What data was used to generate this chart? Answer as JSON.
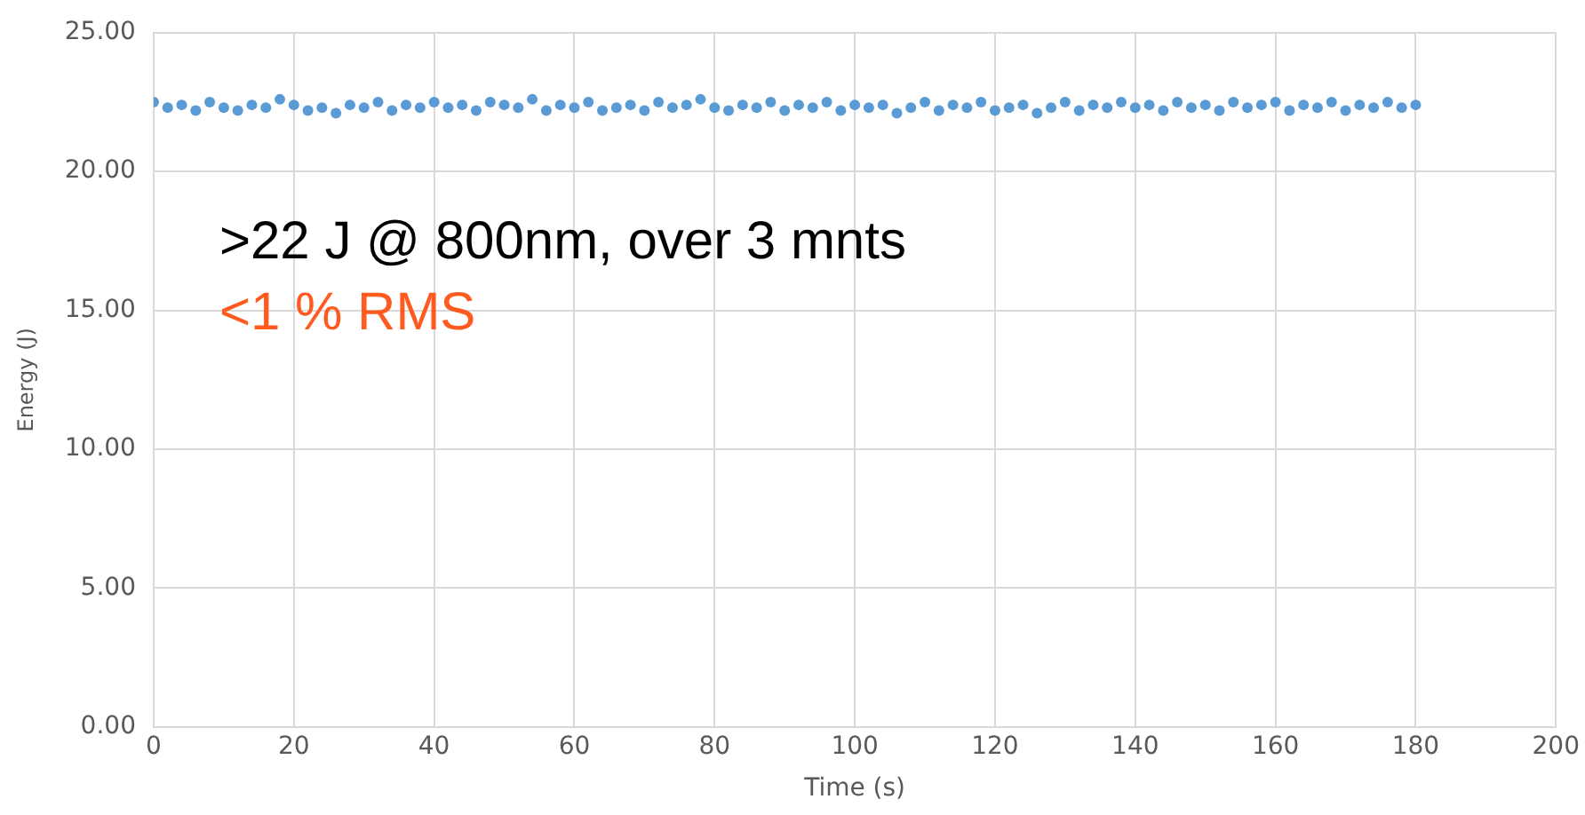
{
  "chart_data": {
    "type": "scatter",
    "xlabel": "Time (s)",
    "ylabel": "Energy (J)",
    "annotations": [
      ">22 J @ 800nm, over 3 mnts",
      "<1 % RMS"
    ],
    "x": [
      0,
      2,
      4,
      6,
      8,
      10,
      12,
      14,
      16,
      18,
      20,
      22,
      24,
      26,
      28,
      30,
      32,
      34,
      36,
      38,
      40,
      42,
      44,
      46,
      48,
      50,
      52,
      54,
      56,
      58,
      60,
      62,
      64,
      66,
      68,
      70,
      72,
      74,
      76,
      78,
      80,
      82,
      84,
      86,
      88,
      90,
      92,
      94,
      96,
      98,
      100,
      102,
      104,
      106,
      108,
      110,
      112,
      114,
      116,
      118,
      120,
      122,
      124,
      126,
      128,
      130,
      132,
      134,
      136,
      138,
      140,
      142,
      144,
      146,
      148,
      150,
      152,
      154,
      156,
      158,
      160,
      162,
      164,
      166,
      168,
      170,
      172,
      174,
      176,
      178,
      180
    ],
    "series": [
      {
        "color": "#5b9bd5",
        "values": [
          22.5,
          22.3,
          22.4,
          22.2,
          22.5,
          22.3,
          22.2,
          22.4,
          22.3,
          22.6,
          22.4,
          22.2,
          22.3,
          22.1,
          22.4,
          22.3,
          22.5,
          22.2,
          22.4,
          22.3,
          22.5,
          22.3,
          22.4,
          22.2,
          22.5,
          22.4,
          22.3,
          22.6,
          22.2,
          22.4,
          22.3,
          22.5,
          22.2,
          22.3,
          22.4,
          22.2,
          22.5,
          22.3,
          22.4,
          22.6,
          22.3,
          22.2,
          22.4,
          22.3,
          22.5,
          22.2,
          22.4,
          22.3,
          22.5,
          22.2,
          22.4,
          22.3,
          22.4,
          22.1,
          22.3,
          22.5,
          22.2,
          22.4,
          22.3,
          22.5,
          22.2,
          22.3,
          22.4,
          22.1,
          22.3,
          22.5,
          22.2,
          22.4,
          22.3,
          22.5,
          22.3,
          22.4,
          22.2,
          22.5,
          22.3,
          22.4,
          22.2,
          22.5,
          22.3,
          22.4,
          22.5,
          22.2,
          22.4,
          22.3,
          22.5,
          22.2,
          22.4,
          22.3,
          22.5,
          22.3,
          22.4
        ]
      }
    ],
    "xlim": [
      0,
      200
    ],
    "xticks": [
      0,
      20,
      40,
      60,
      80,
      100,
      120,
      140,
      160,
      180,
      200
    ],
    "ylim": [
      0,
      25
    ],
    "yticks": [
      {
        "value": 0,
        "label": "0.00"
      },
      {
        "value": 5,
        "label": "5.00"
      },
      {
        "value": 10,
        "label": "10.00"
      },
      {
        "value": 15,
        "label": "15.00"
      },
      {
        "value": 20,
        "label": "20.00"
      },
      {
        "value": 25,
        "label": "25.00"
      }
    ],
    "grid": true,
    "legend": false,
    "marker": "circle"
  }
}
